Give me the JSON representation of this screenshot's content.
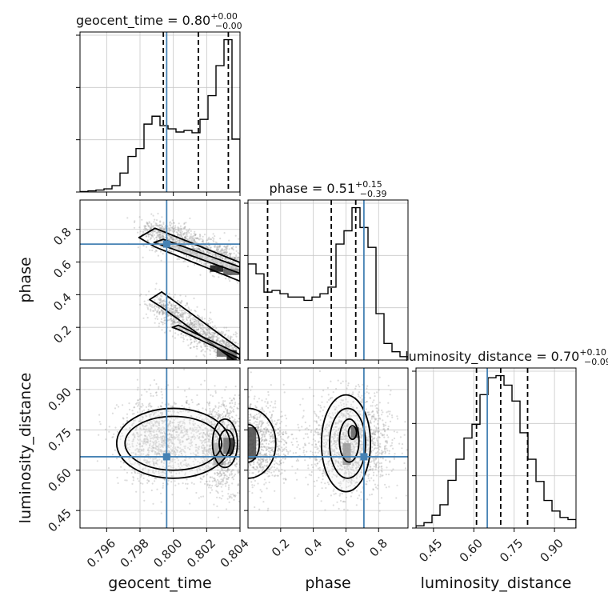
{
  "chart_data": {
    "type": "corner",
    "parameters": [
      "geocent_time",
      "phase",
      "luminosity_distance"
    ],
    "truths": {
      "geocent_time": 0.7996,
      "phase": 0.71,
      "luminosity_distance": 0.65
    },
    "colors": {
      "truth": "#4682b4",
      "hist": "#000000",
      "grid": "#c8c8c8",
      "scatter": "#9a9a9a"
    },
    "grid": true,
    "titles": [
      {
        "param": "geocent_time",
        "label": "geocent_time",
        "median": "0.80",
        "plus": "+0.00",
        "minus": "−0.00"
      },
      {
        "param": "phase",
        "label": "phase",
        "median": "0.51",
        "plus": "+0.15",
        "minus": "−0.39"
      },
      {
        "param": "luminosity_distance",
        "label": "luminosity_distance",
        "median": "0.70",
        "plus": "+0.10",
        "minus": "−0.09"
      }
    ],
    "ticks": {
      "geocent_time": {
        "values": [
          0.796,
          0.798,
          0.8,
          0.802,
          0.804
        ],
        "labels": [
          "0.796",
          "0.798",
          "0.800",
          "0.802",
          "0.804"
        ]
      },
      "phase": {
        "values": [
          0.2,
          0.4,
          0.6,
          0.8
        ],
        "labels": [
          "0.2",
          "0.4",
          "0.6",
          "0.8"
        ]
      },
      "luminosity_distance": {
        "values": [
          0.45,
          0.6,
          0.75,
          0.9
        ],
        "labels": [
          "0.45",
          "0.60",
          "0.75",
          "0.90"
        ]
      }
    },
    "ranges": {
      "geocent_time": [
        0.7944,
        0.804
      ],
      "phase": [
        0.0,
        0.98
      ],
      "luminosity_distance": [
        0.385,
        0.98
      ]
    },
    "histograms": {
      "geocent_time": {
        "edges": [
          0.7944,
          0.79488,
          0.79536,
          0.79584,
          0.79632,
          0.7968,
          0.79728,
          0.79776,
          0.79824,
          0.79872,
          0.7992,
          0.79968,
          0.80016,
          0.80064,
          0.80112,
          0.8016,
          0.80208,
          0.80256,
          0.80304,
          0.80352,
          0.804
        ],
        "counts": [
          0.5,
          1.5,
          2.5,
          4,
          8,
          24,
          45,
          55,
          86,
          96,
          84,
          80,
          76,
          78,
          75,
          92,
          122,
          160,
          193,
          67
        ],
        "quantiles": [
          0.7994,
          0.8015,
          0.8033
        ]
      },
      "phase": {
        "edges": [
          0.0,
          0.049,
          0.098,
          0.147,
          0.196,
          0.245,
          0.294,
          0.343,
          0.392,
          0.441,
          0.49,
          0.539,
          0.588,
          0.637,
          0.686,
          0.735,
          0.784,
          0.833,
          0.882,
          0.931,
          0.98
        ],
        "counts": [
          58,
          52,
          41,
          42,
          40,
          38,
          38,
          36,
          38,
          40,
          44,
          70,
          78,
          92,
          80,
          68,
          28,
          10,
          5,
          2
        ],
        "quantiles": [
          0.12,
          0.51,
          0.66
        ]
      },
      "luminosity_distance": {
        "edges": [
          0.385,
          0.41475,
          0.4445,
          0.47425,
          0.504,
          0.53375,
          0.5635,
          0.59325,
          0.623,
          0.65275,
          0.6825,
          0.71225,
          0.742,
          0.77175,
          0.8015,
          0.83125,
          0.861,
          0.89075,
          0.9205,
          0.95025,
          0.98
        ],
        "counts": [
          2,
          5,
          12,
          22,
          45,
          65,
          85,
          98,
          126,
          142,
          144,
          135,
          120,
          90,
          65,
          44,
          26,
          16,
          10,
          8
        ],
        "quantiles": [
          0.61,
          0.7,
          0.8
        ]
      }
    },
    "scatter": {
      "phase_vs_geocent_time": {
        "modes": [
          {
            "x": [
              0.7985,
              0.804
            ],
            "y": [
              0.8,
              0.58
            ],
            "sx": 0.0005,
            "sy": 0.045,
            "n": 1300
          },
          {
            "x": [
              0.799,
              0.804
            ],
            "y": [
              0.35,
              0.02
            ],
            "sx": 0.0005,
            "sy": 0.045,
            "n": 1100
          }
        ],
        "contours": [
          {
            "x": [
              0.7989,
              0.804
            ],
            "y": [
              0.75,
              0.54
            ],
            "w": [
              0.00048,
              0.022
            ],
            "level": "outer"
          },
          {
            "x": [
              0.7994,
              0.804
            ],
            "y": [
              0.72,
              0.55
            ],
            "w": [
              0.00028,
              0.012
            ],
            "level": "inner"
          },
          {
            "x": [
              0.7993,
              0.804
            ],
            "y": [
              0.37,
              0.02
            ],
            "w": [
              0.00036,
              0.018
            ],
            "level": "outer"
          },
          {
            "x": [
              0.8003,
              0.804
            ],
            "y": [
              0.2,
              0.02
            ],
            "w": [
              0.00018,
              0.008
            ],
            "level": "inner"
          }
        ],
        "dense_cells": [
          {
            "x": [
              0.8022,
              0.803
            ],
            "y": [
              0.54,
              0.58
            ],
            "shade": "#111"
          },
          {
            "x": [
              0.803,
              0.804
            ],
            "y": [
              0.52,
              0.56
            ],
            "shade": "#555"
          },
          {
            "x": [
              0.8032,
              0.8038
            ],
            "y": [
              0.0,
              0.06
            ],
            "shade": "#111"
          },
          {
            "x": [
              0.8026,
              0.8032
            ],
            "y": [
              0.02,
              0.08
            ],
            "shade": "#666"
          }
        ]
      },
      "luminosity_distance_vs_geocent_time": {
        "modes": [
          {
            "cx": 0.803,
            "cy": 0.69,
            "sx": 0.0009,
            "sy": 0.08,
            "n": 1400
          },
          {
            "cx": 0.7992,
            "cy": 0.71,
            "sx": 0.0012,
            "sy": 0.08,
            "n": 1200
          }
        ],
        "ellipses": [
          {
            "cx": 0.8,
            "cy": 0.7,
            "rx": 0.0034,
            "ry": 0.13
          },
          {
            "cx": 0.8,
            "cy": 0.7,
            "rx": 0.0029,
            "ry": 0.1
          },
          {
            "cx": 0.8031,
            "cy": 0.7,
            "rx": 0.00075,
            "ry": 0.09
          },
          {
            "cx": 0.8032,
            "cy": 0.7,
            "rx": 0.00045,
            "ry": 0.05
          }
        ],
        "dense_cells": [
          {
            "x": [
              0.803,
              0.8036
            ],
            "y": [
              0.66,
              0.72
            ],
            "shade": "#222"
          },
          {
            "x": [
              0.8024,
              0.803
            ],
            "y": [
              0.62,
              0.7
            ],
            "shade": "#888"
          }
        ]
      },
      "luminosity_distance_vs_phase": {
        "modes": [
          {
            "cx": 0.63,
            "cy": 0.7,
            "sx": 0.12,
            "sy": 0.09,
            "n": 1600
          },
          {
            "cx": 0.06,
            "cy": 0.7,
            "sx": 0.1,
            "sy": 0.08,
            "n": 900
          }
        ],
        "ellipses": [
          {
            "cx": 0.6,
            "cy": 0.7,
            "rx": 0.15,
            "ry": 0.18
          },
          {
            "cx": 0.61,
            "cy": 0.7,
            "rx": 0.11,
            "ry": 0.13
          },
          {
            "cx": 0.62,
            "cy": 0.71,
            "rx": 0.06,
            "ry": 0.08
          },
          {
            "cx": 0.64,
            "cy": 0.74,
            "rx": 0.025,
            "ry": 0.025
          },
          {
            "cx": 0.0,
            "cy": 0.7,
            "rx": 0.17,
            "ry": 0.13
          },
          {
            "cx": 0.0,
            "cy": 0.7,
            "rx": 0.07,
            "ry": 0.07
          }
        ],
        "dense_cells": [
          {
            "x": [
              0.63,
              0.68
            ],
            "y": [
              0.72,
              0.76
            ],
            "shade": "#111"
          },
          {
            "x": [
              0.58,
              0.63
            ],
            "y": [
              0.62,
              0.7
            ],
            "shade": "#666"
          },
          {
            "x": [
              0.0,
              0.05
            ],
            "y": [
              0.64,
              0.76
            ],
            "shade": "#444"
          }
        ]
      }
    }
  }
}
